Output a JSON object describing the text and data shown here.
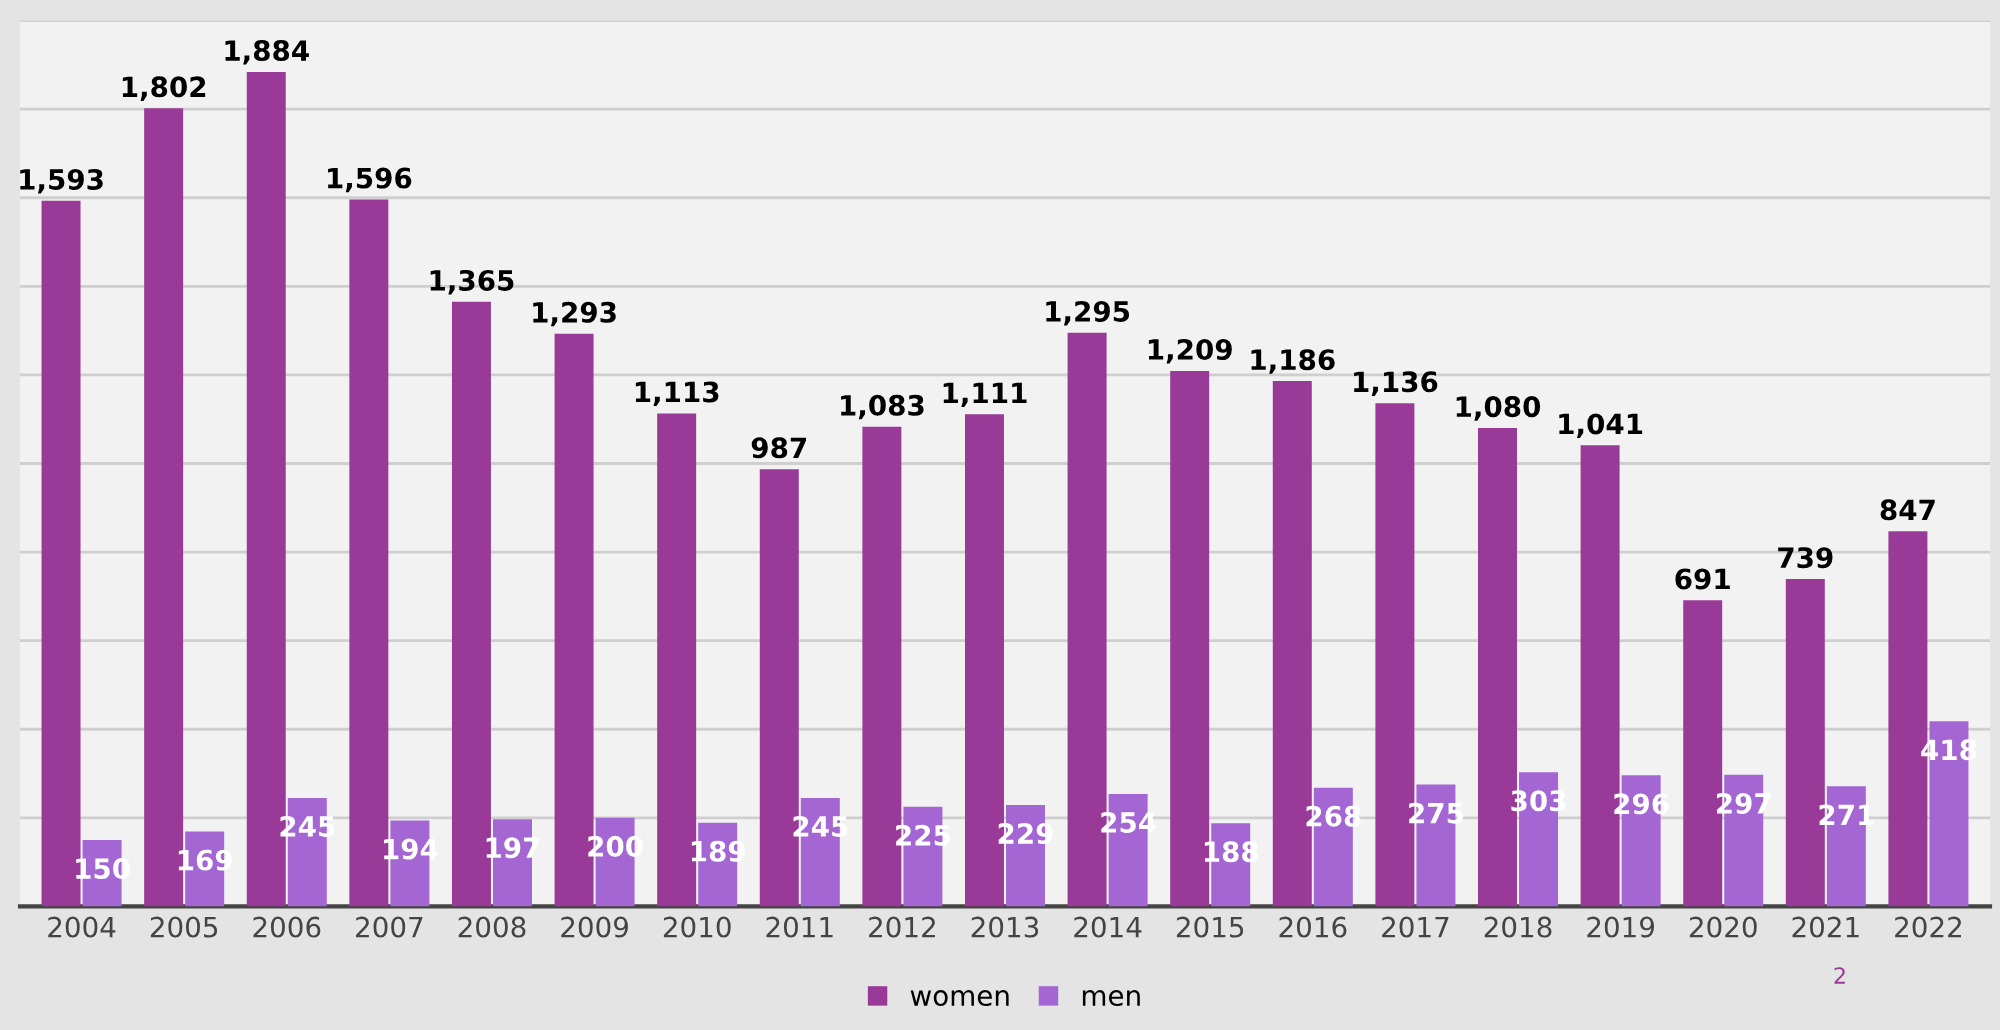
{
  "chart_data": {
    "type": "bar",
    "categories": [
      "2004",
      "2005",
      "2006",
      "2007",
      "2008",
      "2009",
      "2010",
      "2011",
      "2012",
      "2013",
      "2014",
      "2015",
      "2016",
      "2017",
      "2018",
      "2019",
      "2020",
      "2021",
      "2022"
    ],
    "series": [
      {
        "name": "women",
        "color": "#9a3a98",
        "values": [
          1593,
          1802,
          1884,
          1596,
          1365,
          1293,
          1113,
          987,
          1083,
          1111,
          1295,
          1209,
          1186,
          1136,
          1080,
          1041,
          691,
          739,
          847
        ],
        "value_labels": [
          "1,593",
          "1,802",
          "1,884",
          "1,596",
          "1,365",
          "1,293",
          "1,113",
          "987",
          "1,083",
          "1,111",
          "1,295",
          "1,209",
          "1,186",
          "1,136",
          "1,080",
          "1,041",
          "691",
          "739",
          "847"
        ]
      },
      {
        "name": "men",
        "color": "#a466d2",
        "values": [
          150,
          169,
          245,
          194,
          197,
          200,
          189,
          245,
          225,
          229,
          254,
          188,
          268,
          275,
          303,
          296,
          297,
          271,
          418
        ],
        "value_labels": [
          "150",
          "169",
          "245",
          "194",
          "197",
          "200",
          "189",
          "245",
          "225",
          "229",
          "254",
          "188",
          "268",
          "275",
          "303",
          "296",
          "297",
          "271",
          "418"
        ]
      }
    ],
    "ylim": [
      0,
      2000
    ],
    "yticks": [
      0,
      200,
      400,
      600,
      800,
      1000,
      1200,
      1400,
      1600,
      1800,
      2000
    ],
    "tick_labels": "x",
    "grid": "y",
    "legend": "bottom",
    "annotations": [
      "2"
    ]
  }
}
